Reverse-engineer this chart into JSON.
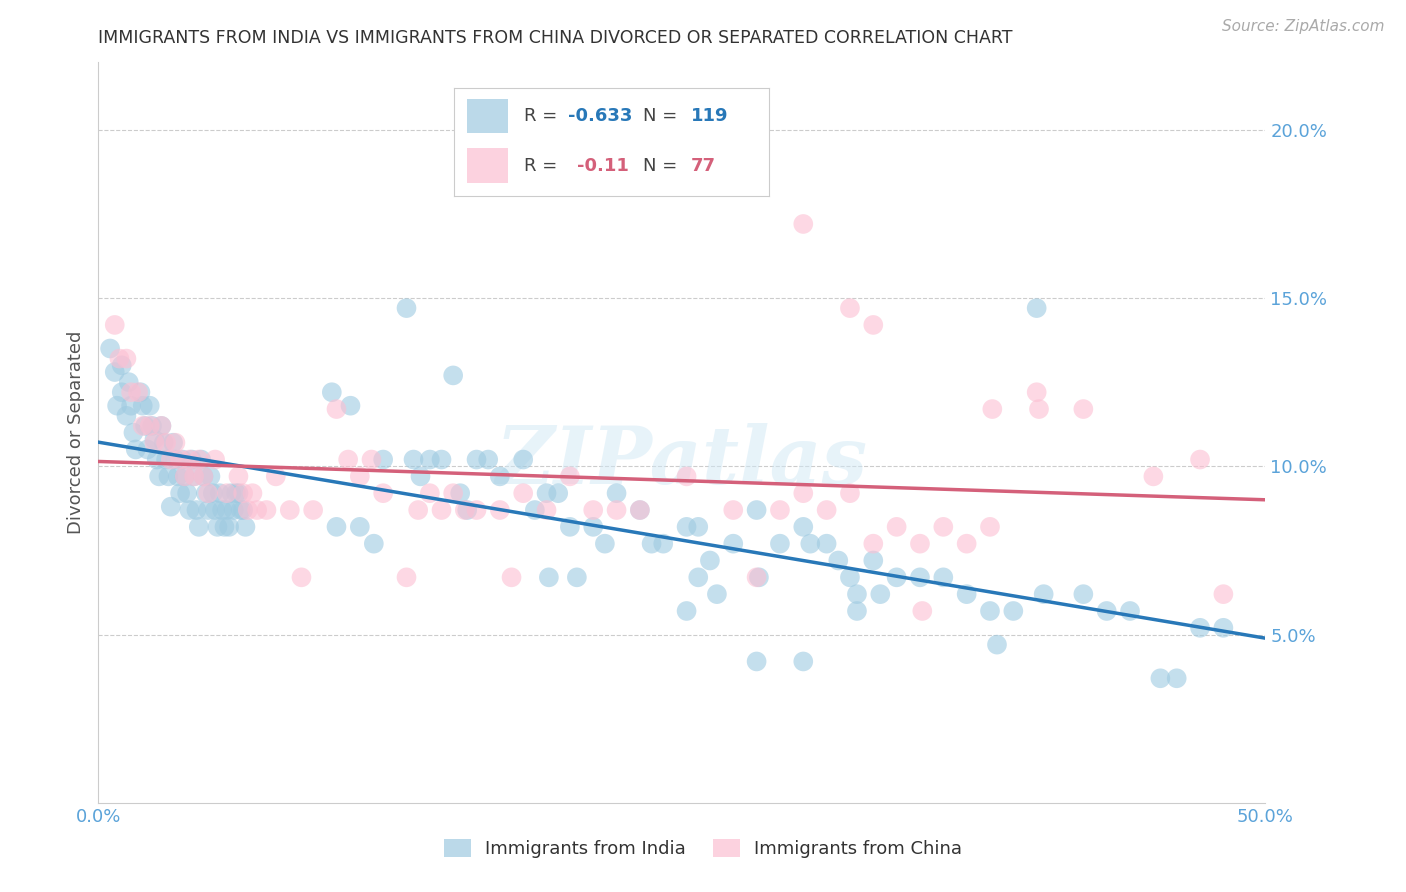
{
  "title": "IMMIGRANTS FROM INDIA VS IMMIGRANTS FROM CHINA DIVORCED OR SEPARATED CORRELATION CHART",
  "source": "Source: ZipAtlas.com",
  "ylabel": "Divorced or Separated",
  "xlim": [
    0.0,
    0.5
  ],
  "ylim": [
    0.0,
    0.22
  ],
  "yticks": [
    0.05,
    0.1,
    0.15,
    0.2
  ],
  "ytick_labels": [
    "5.0%",
    "10.0%",
    "15.0%",
    "20.0%"
  ],
  "xticks": [
    0.0,
    0.1,
    0.2,
    0.3,
    0.4,
    0.5
  ],
  "xtick_labels": [
    "0.0%",
    "",
    "",
    "",
    "",
    "50.0%"
  ],
  "india_color": "#9ecae1",
  "china_color": "#fcbfd2",
  "india_line_color": "#2878b8",
  "china_line_color": "#d4607a",
  "india_R": -0.633,
  "india_N": 119,
  "china_R": -0.11,
  "china_N": 77,
  "watermark": "ZIPatlas",
  "background_color": "#ffffff",
  "grid_color": "#cccccc",
  "title_color": "#333333",
  "axis_label_color": "#555555",
  "tick_color": "#5ba3d9",
  "india_scatter": [
    [
      0.005,
      0.135
    ],
    [
      0.007,
      0.128
    ],
    [
      0.008,
      0.118
    ],
    [
      0.01,
      0.13
    ],
    [
      0.01,
      0.122
    ],
    [
      0.012,
      0.115
    ],
    [
      0.013,
      0.125
    ],
    [
      0.014,
      0.118
    ],
    [
      0.015,
      0.11
    ],
    [
      0.016,
      0.105
    ],
    [
      0.018,
      0.122
    ],
    [
      0.019,
      0.118
    ],
    [
      0.02,
      0.112
    ],
    [
      0.021,
      0.105
    ],
    [
      0.022,
      0.118
    ],
    [
      0.023,
      0.112
    ],
    [
      0.024,
      0.108
    ],
    [
      0.025,
      0.102
    ],
    [
      0.026,
      0.097
    ],
    [
      0.027,
      0.112
    ],
    [
      0.028,
      0.107
    ],
    [
      0.029,
      0.102
    ],
    [
      0.03,
      0.097
    ],
    [
      0.031,
      0.088
    ],
    [
      0.032,
      0.107
    ],
    [
      0.033,
      0.102
    ],
    [
      0.034,
      0.097
    ],
    [
      0.035,
      0.092
    ],
    [
      0.036,
      0.102
    ],
    [
      0.037,
      0.097
    ],
    [
      0.038,
      0.092
    ],
    [
      0.039,
      0.087
    ],
    [
      0.04,
      0.102
    ],
    [
      0.041,
      0.097
    ],
    [
      0.042,
      0.087
    ],
    [
      0.043,
      0.082
    ],
    [
      0.044,
      0.102
    ],
    [
      0.045,
      0.097
    ],
    [
      0.046,
      0.092
    ],
    [
      0.047,
      0.087
    ],
    [
      0.048,
      0.097
    ],
    [
      0.049,
      0.092
    ],
    [
      0.05,
      0.087
    ],
    [
      0.051,
      0.082
    ],
    [
      0.052,
      0.092
    ],
    [
      0.053,
      0.087
    ],
    [
      0.054,
      0.082
    ],
    [
      0.055,
      0.087
    ],
    [
      0.056,
      0.082
    ],
    [
      0.057,
      0.092
    ],
    [
      0.058,
      0.087
    ],
    [
      0.059,
      0.092
    ],
    [
      0.06,
      0.092
    ],
    [
      0.061,
      0.087
    ],
    [
      0.062,
      0.087
    ],
    [
      0.063,
      0.082
    ],
    [
      0.1,
      0.122
    ],
    [
      0.102,
      0.082
    ],
    [
      0.108,
      0.118
    ],
    [
      0.112,
      0.082
    ],
    [
      0.118,
      0.077
    ],
    [
      0.122,
      0.102
    ],
    [
      0.132,
      0.147
    ],
    [
      0.135,
      0.102
    ],
    [
      0.138,
      0.097
    ],
    [
      0.142,
      0.102
    ],
    [
      0.147,
      0.102
    ],
    [
      0.152,
      0.127
    ],
    [
      0.155,
      0.092
    ],
    [
      0.158,
      0.087
    ],
    [
      0.162,
      0.102
    ],
    [
      0.167,
      0.102
    ],
    [
      0.172,
      0.097
    ],
    [
      0.182,
      0.102
    ],
    [
      0.187,
      0.087
    ],
    [
      0.192,
      0.092
    ],
    [
      0.193,
      0.067
    ],
    [
      0.197,
      0.092
    ],
    [
      0.202,
      0.082
    ],
    [
      0.205,
      0.067
    ],
    [
      0.212,
      0.082
    ],
    [
      0.217,
      0.077
    ],
    [
      0.222,
      0.092
    ],
    [
      0.232,
      0.087
    ],
    [
      0.237,
      0.077
    ],
    [
      0.242,
      0.077
    ],
    [
      0.252,
      0.082
    ],
    [
      0.257,
      0.082
    ],
    [
      0.262,
      0.072
    ],
    [
      0.265,
      0.062
    ],
    [
      0.272,
      0.077
    ],
    [
      0.282,
      0.087
    ],
    [
      0.283,
      0.067
    ],
    [
      0.292,
      0.077
    ],
    [
      0.302,
      0.082
    ],
    [
      0.305,
      0.077
    ],
    [
      0.312,
      0.077
    ],
    [
      0.317,
      0.072
    ],
    [
      0.322,
      0.067
    ],
    [
      0.325,
      0.062
    ],
    [
      0.332,
      0.072
    ],
    [
      0.335,
      0.062
    ],
    [
      0.342,
      0.067
    ],
    [
      0.352,
      0.067
    ],
    [
      0.362,
      0.067
    ],
    [
      0.372,
      0.062
    ],
    [
      0.382,
      0.057
    ],
    [
      0.385,
      0.047
    ],
    [
      0.392,
      0.057
    ],
    [
      0.402,
      0.147
    ],
    [
      0.405,
      0.062
    ],
    [
      0.422,
      0.062
    ],
    [
      0.432,
      0.057
    ],
    [
      0.442,
      0.057
    ],
    [
      0.282,
      0.042
    ],
    [
      0.302,
      0.042
    ],
    [
      0.325,
      0.057
    ],
    [
      0.252,
      0.057
    ],
    [
      0.257,
      0.067
    ],
    [
      0.455,
      0.037
    ],
    [
      0.462,
      0.037
    ],
    [
      0.472,
      0.052
    ],
    [
      0.482,
      0.052
    ]
  ],
  "china_scatter": [
    [
      0.007,
      0.142
    ],
    [
      0.009,
      0.132
    ],
    [
      0.012,
      0.132
    ],
    [
      0.014,
      0.122
    ],
    [
      0.017,
      0.122
    ],
    [
      0.019,
      0.112
    ],
    [
      0.022,
      0.112
    ],
    [
      0.024,
      0.107
    ],
    [
      0.027,
      0.112
    ],
    [
      0.029,
      0.107
    ],
    [
      0.031,
      0.102
    ],
    [
      0.033,
      0.107
    ],
    [
      0.035,
      0.102
    ],
    [
      0.037,
      0.097
    ],
    [
      0.039,
      0.102
    ],
    [
      0.041,
      0.097
    ],
    [
      0.043,
      0.102
    ],
    [
      0.045,
      0.097
    ],
    [
      0.047,
      0.092
    ],
    [
      0.05,
      0.102
    ],
    [
      0.055,
      0.092
    ],
    [
      0.06,
      0.097
    ],
    [
      0.062,
      0.092
    ],
    [
      0.064,
      0.087
    ],
    [
      0.066,
      0.092
    ],
    [
      0.068,
      0.087
    ],
    [
      0.072,
      0.087
    ],
    [
      0.076,
      0.097
    ],
    [
      0.082,
      0.087
    ],
    [
      0.087,
      0.067
    ],
    [
      0.092,
      0.087
    ],
    [
      0.102,
      0.117
    ],
    [
      0.107,
      0.102
    ],
    [
      0.112,
      0.097
    ],
    [
      0.117,
      0.102
    ],
    [
      0.122,
      0.092
    ],
    [
      0.132,
      0.067
    ],
    [
      0.137,
      0.087
    ],
    [
      0.142,
      0.092
    ],
    [
      0.147,
      0.087
    ],
    [
      0.152,
      0.092
    ],
    [
      0.157,
      0.087
    ],
    [
      0.162,
      0.087
    ],
    [
      0.172,
      0.087
    ],
    [
      0.177,
      0.067
    ],
    [
      0.182,
      0.092
    ],
    [
      0.192,
      0.087
    ],
    [
      0.202,
      0.097
    ],
    [
      0.212,
      0.087
    ],
    [
      0.222,
      0.087
    ],
    [
      0.232,
      0.087
    ],
    [
      0.252,
      0.097
    ],
    [
      0.272,
      0.087
    ],
    [
      0.282,
      0.067
    ],
    [
      0.292,
      0.087
    ],
    [
      0.302,
      0.092
    ],
    [
      0.312,
      0.087
    ],
    [
      0.322,
      0.092
    ],
    [
      0.332,
      0.077
    ],
    [
      0.342,
      0.082
    ],
    [
      0.352,
      0.077
    ],
    [
      0.362,
      0.082
    ],
    [
      0.372,
      0.077
    ],
    [
      0.382,
      0.082
    ],
    [
      0.402,
      0.122
    ],
    [
      0.422,
      0.117
    ],
    [
      0.383,
      0.117
    ],
    [
      0.353,
      0.057
    ],
    [
      0.302,
      0.172
    ],
    [
      0.322,
      0.147
    ],
    [
      0.332,
      0.142
    ],
    [
      0.403,
      0.117
    ],
    [
      0.452,
      0.097
    ],
    [
      0.472,
      0.102
    ],
    [
      0.482,
      0.062
    ]
  ]
}
